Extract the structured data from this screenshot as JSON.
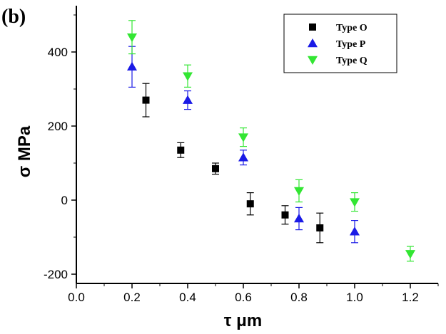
{
  "panel_label": "(b)",
  "chart_data": {
    "type": "scatter",
    "title": "",
    "xlabel": "τ μm",
    "ylabel": "σ MPa",
    "xlim": [
      0.0,
      1.3
    ],
    "ylim": [
      -225,
      525
    ],
    "x_ticks": [
      0.0,
      0.2,
      0.4,
      0.6,
      0.8,
      1.0,
      1.2
    ],
    "x_tick_labels": [
      "0.0",
      "0.2",
      "0.4",
      "0.6",
      "0.8",
      "1.0",
      "1.2"
    ],
    "y_ticks": [
      -200,
      0,
      200,
      400
    ],
    "y_tick_labels": [
      "-200",
      "0",
      "200",
      "400"
    ],
    "grid": false,
    "legend_position": "top-right",
    "series": [
      {
        "name": "Type O",
        "marker": "square",
        "color": "#000000",
        "error_color": "#000000",
        "x": [
          0.25,
          0.375,
          0.5,
          0.625,
          0.75,
          0.875
        ],
        "y": [
          270,
          135,
          85,
          -10,
          -40,
          -75
        ],
        "err": [
          45,
          20,
          15,
          30,
          25,
          40
        ]
      },
      {
        "name": "Type P",
        "marker": "triangle-up",
        "color": "#1a1ae6",
        "error_color": "#1a1ae6",
        "x": [
          0.2,
          0.4,
          0.6,
          0.8,
          1.0
        ],
        "y": [
          360,
          270,
          115,
          -50,
          -85
        ],
        "err": [
          55,
          25,
          20,
          30,
          30
        ]
      },
      {
        "name": "Type Q",
        "marker": "triangle-down",
        "color": "#33e633",
        "error_color": "#33e633",
        "x": [
          0.2,
          0.4,
          0.6,
          0.8,
          1.0,
          1.2
        ],
        "y": [
          440,
          335,
          170,
          25,
          -5,
          -145
        ],
        "err": [
          45,
          30,
          25,
          30,
          25,
          20
        ]
      }
    ]
  }
}
